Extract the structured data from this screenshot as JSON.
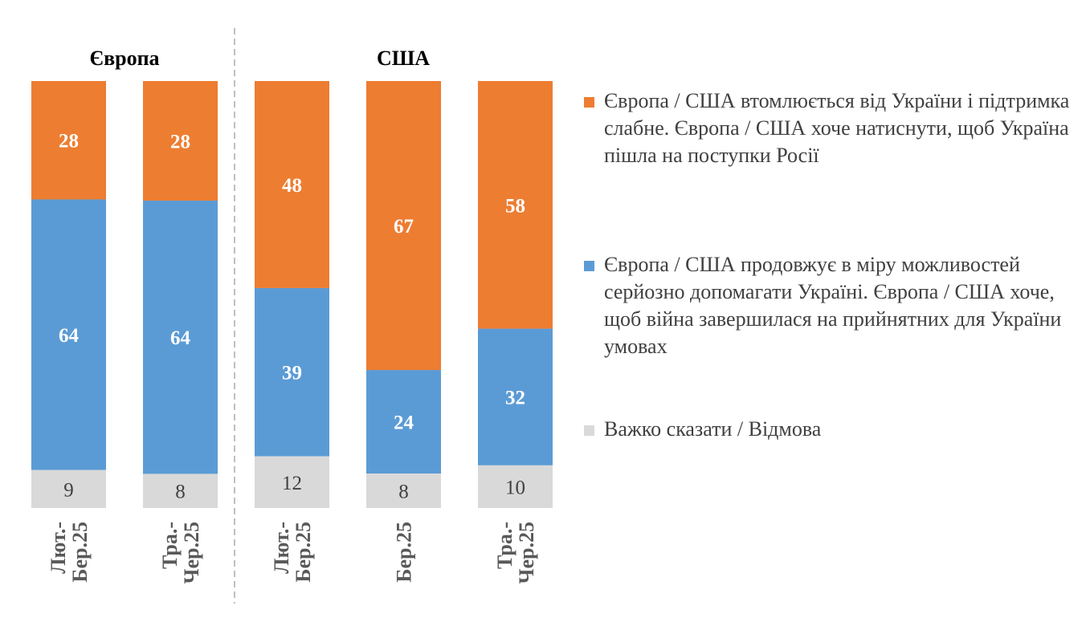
{
  "chart_data": {
    "type": "bar",
    "stacked": true,
    "normalized": true,
    "groups": [
      {
        "title": "Європа",
        "categories": [
          [
            "Лют.-",
            "Бер.25"
          ],
          [
            "Тра.-",
            "Чер.25"
          ]
        ]
      },
      {
        "title": "США",
        "categories": [
          [
            "Лют.-",
            "Бер.25"
          ],
          [
            "Бер.25"
          ],
          [
            "Тра.-",
            "Чер.25"
          ]
        ]
      }
    ],
    "series": [
      {
        "name": "Європа / США втомлюється від України і підтримка слабне. Європа / США хоче натиснути, щоб Україна пішла на поступки Росії",
        "color": "#ED7D31",
        "values": [
          28,
          28,
          48,
          67,
          58
        ]
      },
      {
        "name": "Європа / США продовжує в міру можливостей серйозно допомагати Україні. Європа / США хоче, щоб війна завершилася на прийнятних для України умовах",
        "color": "#5B9BD5",
        "values": [
          64,
          64,
          39,
          24,
          32
        ]
      },
      {
        "name": "Важко сказати / Відмова",
        "color": "#D9D9D9",
        "values": [
          9,
          8,
          12,
          8,
          10
        ]
      }
    ],
    "legend_position": "right",
    "grid": false,
    "group_divider": "dashed"
  }
}
